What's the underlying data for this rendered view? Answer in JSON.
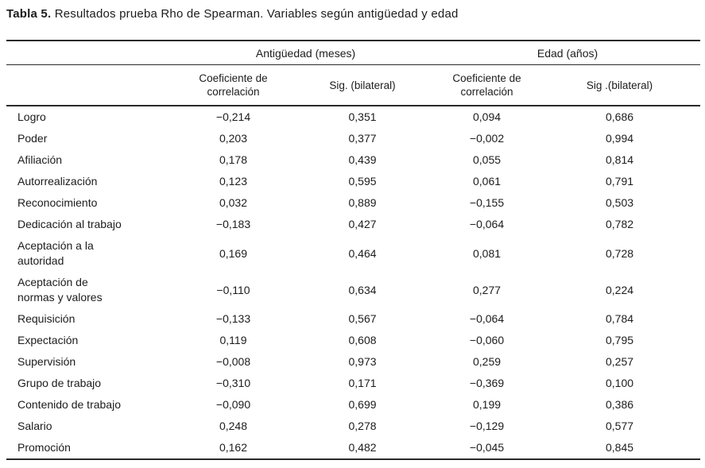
{
  "title": {
    "label": "Tabla 5.",
    "text": " Resultados prueba Rho de Spearman. Variables según antigüedad y edad"
  },
  "table": {
    "groups": [
      "Antigüedad (meses)",
      "Edad (años)"
    ],
    "subheaders": [
      "Coeficiente de\ncorrelación",
      "Sig. (bilateral)",
      "Coeficiente de\ncorrelación",
      "Sig .(bilateral)"
    ],
    "rows": [
      {
        "label": "Logro",
        "values": [
          "−0,214",
          "0,351",
          "0,094",
          "0,686"
        ]
      },
      {
        "label": "Poder",
        "values": [
          "0,203",
          "0,377",
          "−0,002",
          "0,994"
        ]
      },
      {
        "label": "Afiliación",
        "values": [
          "0,178",
          "0,439",
          "0,055",
          "0,814"
        ]
      },
      {
        "label": "Autorrealización",
        "values": [
          "0,123",
          "0,595",
          "0,061",
          "0,791"
        ]
      },
      {
        "label": "Reconocimiento",
        "values": [
          "0,032",
          "0,889",
          "−0,155",
          "0,503"
        ]
      },
      {
        "label": "Dedicación al trabajo",
        "values": [
          "−0,183",
          "0,427",
          "−0,064",
          "0,782"
        ]
      },
      {
        "label": "Aceptación a la\nautoridad",
        "values": [
          "0,169",
          "0,464",
          "0,081",
          "0,728"
        ]
      },
      {
        "label": "Aceptación de\nnormas y valores",
        "values": [
          "−0,110",
          "0,634",
          "0,277",
          "0,224"
        ]
      },
      {
        "label": "Requisición",
        "values": [
          "−0,133",
          "0,567",
          "−0,064",
          "0,784"
        ]
      },
      {
        "label": "Expectación",
        "values": [
          "0,119",
          "0,608",
          "−0,060",
          "0,795"
        ]
      },
      {
        "label": "Supervisión",
        "values": [
          "−0,008",
          "0,973",
          "0,259",
          "0,257"
        ]
      },
      {
        "label": "Grupo de trabajo",
        "values": [
          "−0,310",
          "0,171",
          "−0,369",
          "0,100"
        ]
      },
      {
        "label": "Contenido de trabajo",
        "values": [
          "−0,090",
          "0,699",
          "0,199",
          "0,386"
        ]
      },
      {
        "label": "Salario",
        "values": [
          "0,248",
          "0,278",
          "−0,129",
          "0,577"
        ]
      },
      {
        "label": "Promoción",
        "values": [
          "0,162",
          "0,482",
          "−0,045",
          "0,845"
        ]
      }
    ]
  },
  "colors": {
    "text": "#1c1c1c",
    "rule": "#2a2a2a",
    "background": "#ffffff"
  }
}
